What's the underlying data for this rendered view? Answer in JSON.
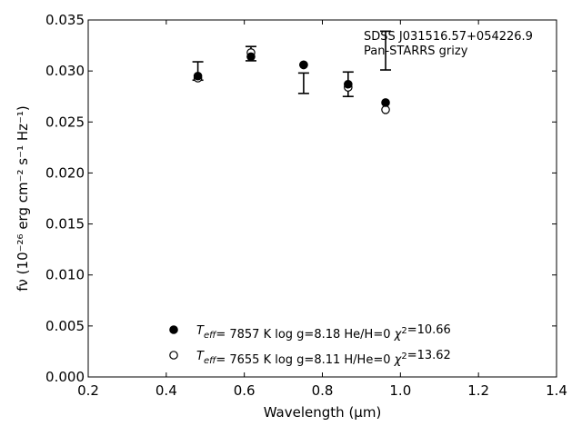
{
  "chart_data": {
    "type": "scatter",
    "xlabel": "Wavelength (μm)",
    "ylabel": "fν (10⁻²⁶ erg cm⁻² s⁻¹ Hz⁻¹)",
    "xlim": [
      0.2,
      1.4
    ],
    "ylim": [
      0.0,
      0.035
    ],
    "xticks": [
      "0.2",
      "0.4",
      "0.6",
      "0.8",
      "1.0",
      "1.2",
      "1.4"
    ],
    "yticks": [
      "0.000",
      "0.005",
      "0.010",
      "0.015",
      "0.020",
      "0.025",
      "0.030",
      "0.035"
    ],
    "annotation": {
      "line1": "SDSS J031516.57+054226.9",
      "line2": "Pan-STARRS grizy"
    },
    "observed": {
      "x": [
        0.481,
        0.617,
        0.752,
        0.866,
        0.962
      ],
      "y": [
        0.03,
        0.0317,
        0.0288,
        0.0287,
        0.032
      ],
      "yerr": [
        0.0009,
        0.0007,
        0.001,
        0.0012,
        0.0019
      ]
    },
    "series": [
      {
        "name": "He/H=0",
        "marker": "filled-circle",
        "label_teff_value": "7857 K",
        "label_logg": "log g=8.18",
        "label_comp": "He/H=0",
        "label_chi2": "=10.66",
        "x": [
          0.481,
          0.617,
          0.752,
          0.866,
          0.962
        ],
        "y": [
          0.0295,
          0.0314,
          0.0306,
          0.0287,
          0.0269
        ]
      },
      {
        "name": "H/He=0",
        "marker": "open-circle",
        "label_teff_value": "7655 K",
        "label_logg": "log g=8.11",
        "label_comp": "H/He=0",
        "label_chi2": "=13.62",
        "x": [
          0.481,
          0.617,
          0.752,
          0.866,
          0.962
        ],
        "y": [
          0.0293,
          0.0318,
          0.0306,
          0.0284,
          0.0262
        ]
      }
    ],
    "grid": false,
    "legend_position": "lower-center"
  }
}
